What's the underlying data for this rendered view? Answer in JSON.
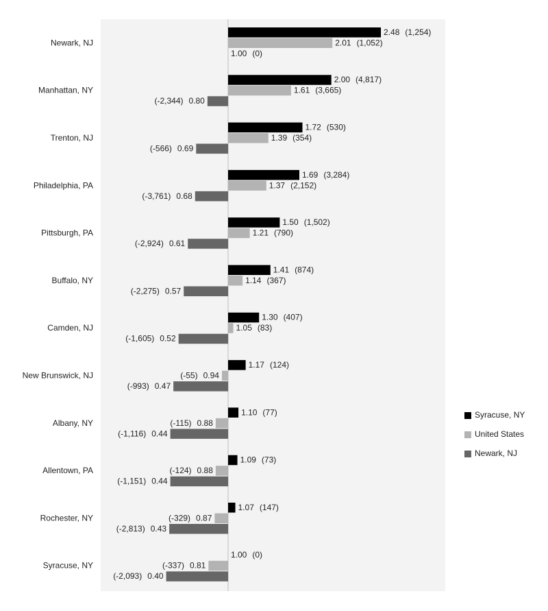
{
  "chart_data": {
    "type": "bar",
    "orientation": "horizontal",
    "baseline": 1,
    "categories": [
      "Newark, NJ",
      "Manhattan, NY",
      "Trenton, NJ",
      "Philadelphia, PA",
      "Pittsburgh, PA",
      "Buffalo, NY",
      "Camden, NJ",
      "New Brunswick, NJ",
      "Albany, NY",
      "Allentown, PA",
      "Rochester, NY",
      "Syracuse, NY"
    ],
    "series": [
      {
        "name": "Syracuse, NY",
        "color": "#000000",
        "values": [
          2.48,
          2.0,
          1.72,
          1.69,
          1.5,
          1.41,
          1.3,
          1.17,
          1.1,
          1.09,
          1.07,
          1.0
        ],
        "value_labels": [
          "2.48",
          "2.00",
          "1.72",
          "1.69",
          "1.50",
          "1.41",
          "1.30",
          "1.17",
          "1.10",
          "1.09",
          "1.07",
          "1.00"
        ],
        "counts": [
          1254,
          4817,
          530,
          3284,
          1502,
          874,
          407,
          124,
          77,
          73,
          147,
          0
        ],
        "count_labels": [
          "(1,254)",
          "(4,817)",
          "(530)",
          "(3,284)",
          "(1,502)",
          "(874)",
          "(407)",
          "(124)",
          "(77)",
          "(73)",
          "(147)",
          "(0)"
        ]
      },
      {
        "name": "United States",
        "color": "#b3b3b3",
        "values": [
          2.01,
          1.61,
          1.39,
          1.37,
          1.21,
          1.14,
          1.05,
          0.94,
          0.88,
          0.88,
          0.87,
          0.81
        ],
        "value_labels": [
          "2.01",
          "1.61",
          "1.39",
          "1.37",
          "1.21",
          "1.14",
          "1.05",
          "0.94",
          "0.88",
          "0.88",
          "0.87",
          "0.81"
        ],
        "counts": [
          1052,
          3665,
          354,
          2152,
          790,
          367,
          83,
          -55,
          -115,
          -124,
          -329,
          -337
        ],
        "count_labels": [
          "(1,052)",
          "(3,665)",
          "(354)",
          "(2,152)",
          "(790)",
          "(367)",
          "(83)",
          "(-55)",
          "(-115)",
          "(-124)",
          "(-329)",
          "(-337)"
        ]
      },
      {
        "name": "Newark, NJ",
        "color": "#666666",
        "values": [
          1.0,
          0.8,
          0.69,
          0.68,
          0.61,
          0.57,
          0.52,
          0.47,
          0.44,
          0.44,
          0.43,
          0.4
        ],
        "value_labels": [
          "1.00",
          "0.80",
          "0.69",
          "0.68",
          "0.61",
          "0.57",
          "0.52",
          "0.47",
          "0.44",
          "0.44",
          "0.43",
          "0.40"
        ],
        "counts": [
          0,
          -2344,
          -566,
          -3761,
          -2924,
          -2275,
          -1605,
          -993,
          -1116,
          -1151,
          -2813,
          -2093
        ],
        "count_labels": [
          "(0)",
          "(-2,344)",
          "(-566)",
          "(-3,761)",
          "(-2,924)",
          "(-2,275)",
          "(-1,605)",
          "(-993)",
          "(-1,116)",
          "(-1,151)",
          "(-2,813)",
          "(-2,093)"
        ]
      }
    ],
    "legend": "right"
  }
}
